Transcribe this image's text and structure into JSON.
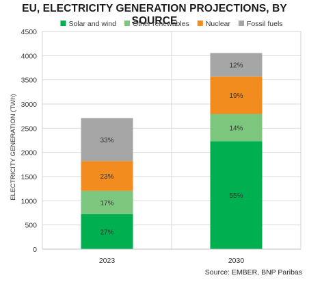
{
  "chart_data": {
    "type": "bar",
    "stacked": true,
    "title": "EU, ELECTRICITY GENERATION PROJECTIONS, BY SOURCE",
    "xlabel": "",
    "ylabel": "ELECTRICITY GENERATION (TWh)",
    "ylim": [
      0,
      4500
    ],
    "yticks": [
      0,
      500,
      1000,
      1500,
      2000,
      2500,
      3000,
      3500,
      4000,
      4500
    ],
    "categories": [
      "2023",
      "2030"
    ],
    "grid": true,
    "legend_position": "top",
    "series": [
      {
        "name": "Solar and wind",
        "color": "#00b050",
        "values": [
          725,
          2230
        ],
        "labels": [
          "27%",
          "55%"
        ]
      },
      {
        "name": "Other renewables",
        "color": "#7dc67e",
        "values": [
          480,
          565
        ],
        "labels": [
          "17%",
          "14%"
        ]
      },
      {
        "name": "Nuclear",
        "color": "#f28c1e",
        "values": [
          615,
          775
        ],
        "labels": [
          "23%",
          "19%"
        ]
      },
      {
        "name": "Fossil fuels",
        "color": "#a6a6a6",
        "values": [
          890,
          485
        ],
        "labels": [
          "33%",
          "12%"
        ]
      }
    ]
  },
  "source": "Source: EMBER, BNP Paribas"
}
